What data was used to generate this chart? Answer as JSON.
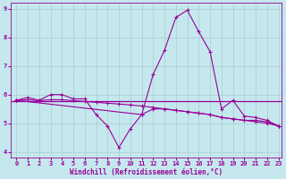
{
  "xlabel": "Windchill (Refroidissement éolien,°C)",
  "bg_color": "#c5e8ee",
  "line_color": "#990099",
  "grid_color": "#aacccc",
  "x_min": 0,
  "x_max": 23,
  "y_min": 4,
  "y_max": 9,
  "series1_x": [
    0,
    1,
    2,
    3,
    4,
    5,
    6,
    7,
    8,
    9,
    10,
    11,
    12,
    13,
    14,
    15,
    16,
    17,
    18,
    19,
    20,
    21,
    22,
    23
  ],
  "series1_y": [
    5.8,
    5.9,
    5.8,
    6.0,
    6.0,
    5.85,
    5.85,
    5.3,
    4.9,
    4.15,
    4.8,
    5.3,
    5.5,
    5.5,
    5.45,
    5.4,
    5.35,
    5.3,
    5.2,
    5.15,
    5.1,
    5.1,
    5.05,
    4.9
  ],
  "series2_x": [
    0,
    1,
    2,
    3,
    4,
    5,
    6,
    7,
    8,
    9,
    10,
    11,
    12,
    13,
    14,
    15,
    16,
    17,
    18,
    19,
    20,
    21,
    22,
    23
  ],
  "series2_y": [
    5.8,
    5.82,
    5.79,
    5.82,
    5.82,
    5.79,
    5.76,
    5.73,
    5.7,
    5.67,
    5.64,
    5.6,
    5.55,
    5.5,
    5.45,
    5.4,
    5.35,
    5.3,
    5.2,
    5.15,
    5.1,
    5.05,
    5.0,
    4.9
  ],
  "series3_x": [
    0,
    11,
    12,
    13,
    14,
    15,
    16,
    17,
    18,
    19,
    20,
    21,
    22,
    23
  ],
  "series3_y": [
    5.8,
    5.3,
    6.7,
    7.55,
    8.7,
    8.95,
    8.2,
    7.5,
    5.5,
    5.8,
    5.25,
    5.2,
    5.1,
    4.9
  ],
  "hline_y": 5.78,
  "yticks": [
    4,
    5,
    6,
    7,
    8,
    9
  ]
}
